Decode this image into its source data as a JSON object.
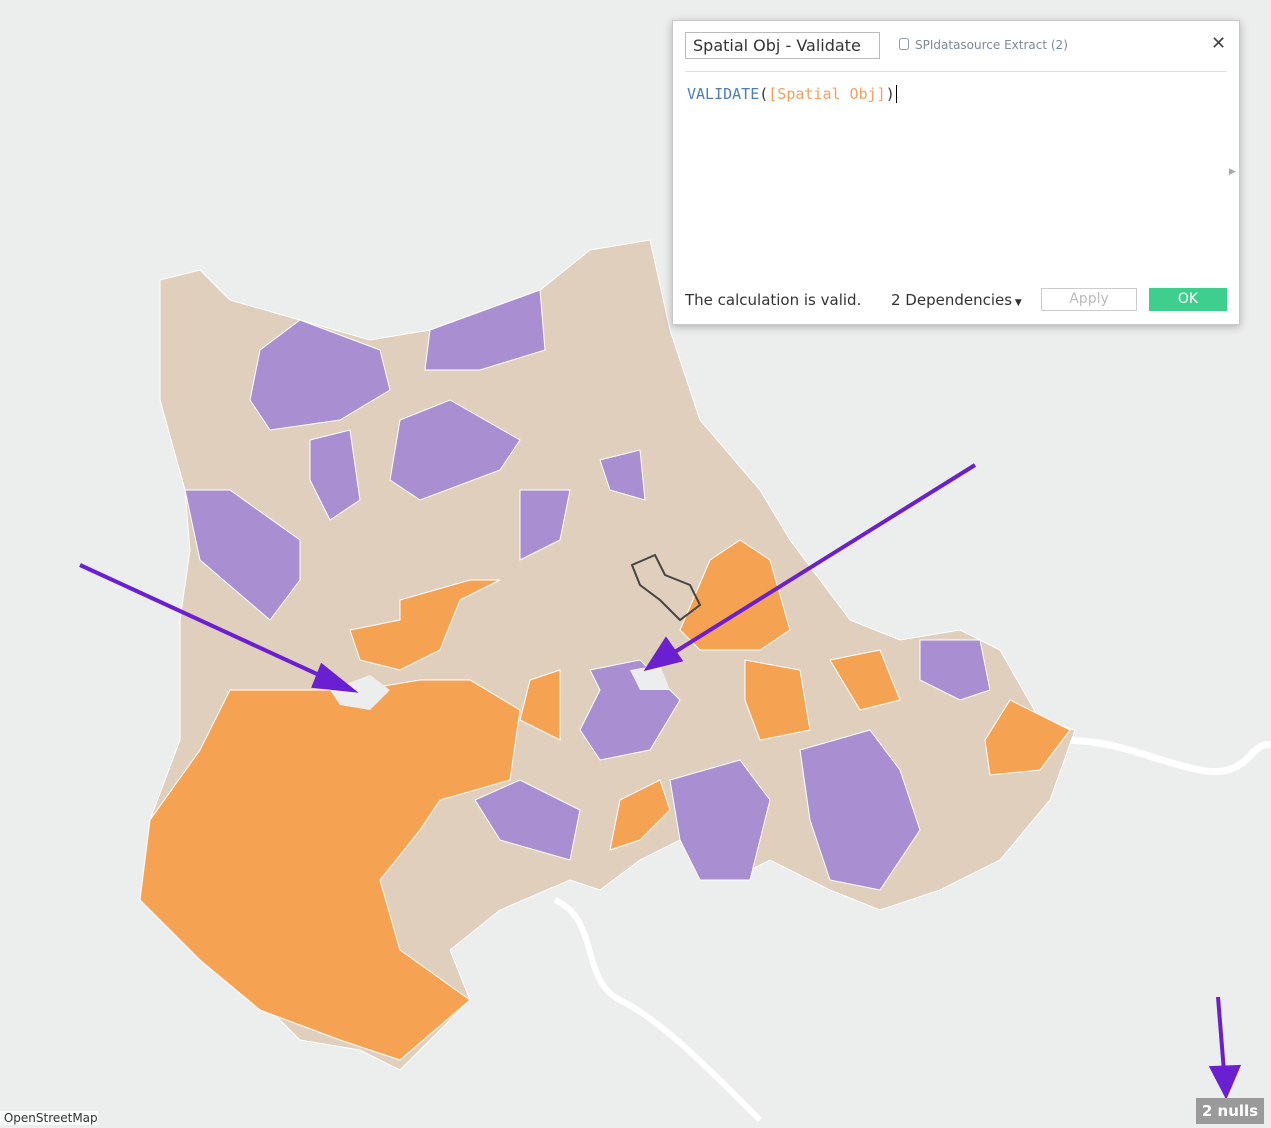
{
  "dialog": {
    "calc_name": "Spatial Obj - Validate",
    "datasource": "SPIdatasource Extract (2)",
    "formula": {
      "function": "VALIDATE",
      "open": "(",
      "field": "[Spatial Obj]",
      "close": ")"
    },
    "status": "The calculation is valid.",
    "dependencies": "2 Dependencies",
    "apply": "Apply",
    "ok": "OK"
  },
  "map": {
    "attribution": "© OpenStreetMap",
    "nulls": "2 nulls"
  }
}
